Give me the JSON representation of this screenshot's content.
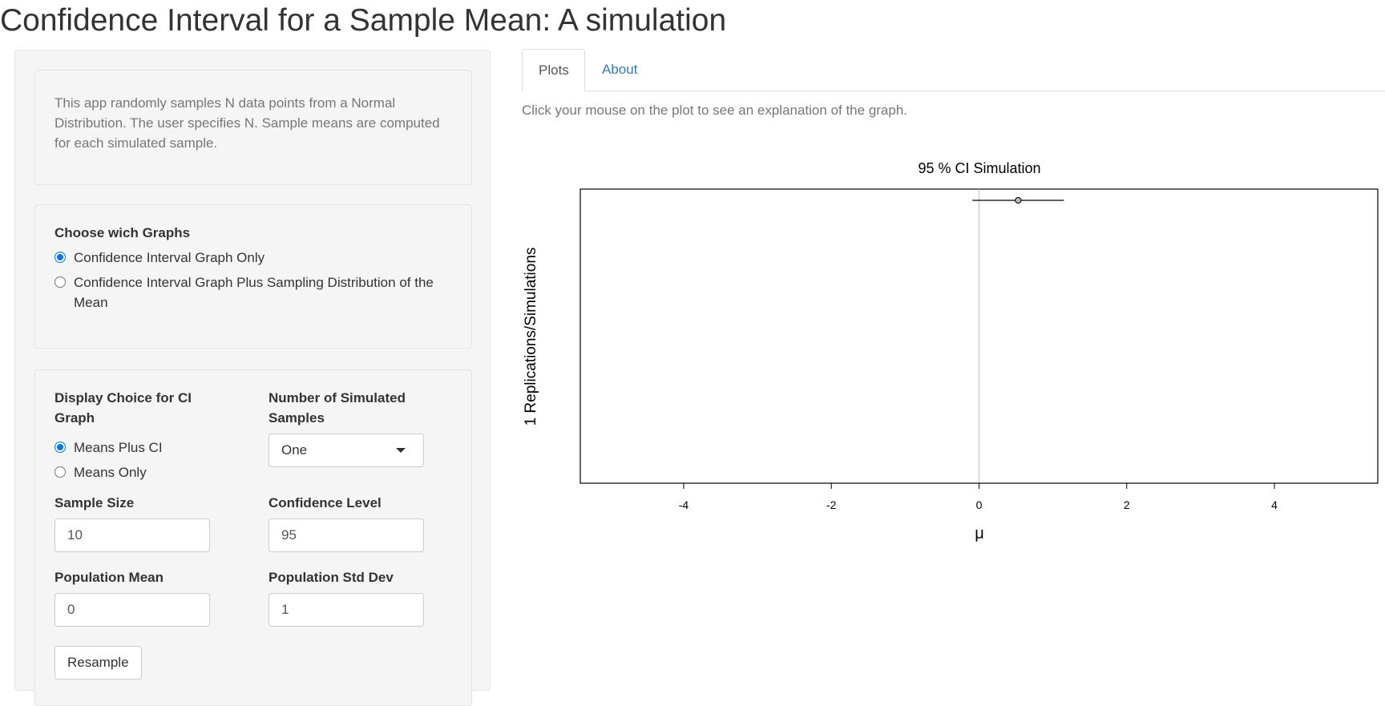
{
  "app": {
    "title": "Confidence Interval for a Sample Mean: A simulation"
  },
  "sidebar": {
    "intro": "This app randomly samples N data points from a Normal Distribution. The user specifies N. Sample means are computed for each simulated sample.",
    "graphs": {
      "label": "Choose wich Graphs",
      "options": [
        {
          "label": "Confidence Interval Graph Only",
          "checked": true
        },
        {
          "label": "Confidence Interval Graph Plus Sampling Distribution of the Mean",
          "checked": false
        }
      ]
    },
    "display": {
      "label": "Display Choice for CI Graph",
      "options": [
        {
          "label": "Means Plus CI",
          "checked": true
        },
        {
          "label": "Means Only",
          "checked": false
        }
      ]
    },
    "num_samples": {
      "label": "Number of Simulated Samples",
      "value": "One"
    },
    "sample_size": {
      "label": "Sample Size",
      "value": "10"
    },
    "confidence_level": {
      "label": "Confidence Level",
      "value": "95"
    },
    "pop_mean": {
      "label": "Population Mean",
      "value": "0"
    },
    "pop_sd": {
      "label": "Population Std Dev",
      "value": "1"
    },
    "resample_label": "Resample"
  },
  "tabs": [
    {
      "label": "Plots",
      "active": true
    },
    {
      "label": "About",
      "active": false
    }
  ],
  "main": {
    "hint": "Click your mouse on the plot to see an explanation of the graph."
  },
  "chart_data": {
    "type": "scatter",
    "title": "95 % CI Simulation",
    "xlabel": "μ",
    "ylabel": "1 Replications/Simulations",
    "xlim": [
      -5.4,
      5.4
    ],
    "xticks": [
      -4,
      -2,
      0,
      2,
      4
    ],
    "reference_line_x": 0,
    "intervals": [
      {
        "mean": 0.53,
        "lower": -0.09,
        "upper": 1.15
      }
    ]
  }
}
